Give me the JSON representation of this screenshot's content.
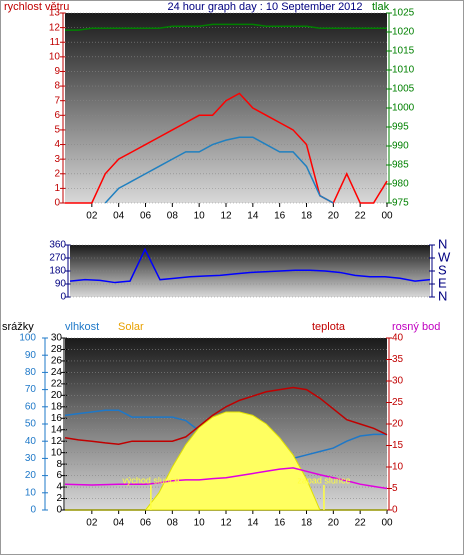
{
  "chart_data": [
    {
      "type": "line",
      "title": "24 hour graph day : 10 September 2012",
      "ylabel": "rychlost větru",
      "y2label": "tlak",
      "x": [
        0,
        1,
        2,
        3,
        4,
        5,
        6,
        7,
        8,
        9,
        10,
        11,
        12,
        13,
        14,
        15,
        16,
        17,
        18,
        19,
        20,
        21,
        22,
        23,
        24
      ],
      "xlim": [
        0,
        24
      ],
      "xticks": [
        {
          "value": 2,
          "label": "02"
        },
        {
          "value": 4,
          "label": "04"
        },
        {
          "value": 6,
          "label": "06"
        },
        {
          "value": 8,
          "label": "08"
        },
        10,
        12,
        14,
        16,
        18,
        20,
        22,
        {
          "value": 24,
          "label": "00"
        }
      ],
      "ylim": [
        0,
        13
      ],
      "yticks": [
        0,
        1,
        2,
        3,
        4,
        5,
        6,
        7,
        8,
        9,
        10,
        11,
        12,
        13
      ],
      "ycolor": "#c00000",
      "y2lim": [
        975,
        1025
      ],
      "y2ticks": [
        975,
        980,
        985,
        990,
        995,
        1000,
        1005,
        1010,
        1015,
        1020,
        1025
      ],
      "y2color": "#008000",
      "grid": true,
      "series": [
        {
          "color": "#ff0000",
          "values": [
            0,
            0,
            0,
            2,
            3,
            3.5,
            4,
            4.5,
            5,
            5.5,
            6,
            6,
            7,
            7.5,
            6.5,
            6,
            5.5,
            5,
            4,
            0.5,
            0,
            2,
            0,
            0,
            1.5
          ]
        },
        {
          "color": "#2080c0",
          "values": [
            null,
            null,
            null,
            0,
            1,
            1.5,
            2,
            2.5,
            3,
            3.5,
            3.5,
            4,
            4.3,
            4.5,
            4.5,
            4,
            3.5,
            3.5,
            2.5,
            0.5,
            0,
            null,
            null,
            null,
            null
          ]
        },
        {
          "color": "#008000",
          "axis": "y2",
          "values": [
            1020.5,
            1020.5,
            1021,
            1021,
            1021,
            1021,
            1021,
            1021,
            1021.5,
            1021.5,
            1021.5,
            1022,
            1022,
            1022,
            1022,
            1021.5,
            1021.5,
            1021.5,
            1021.5,
            1021,
            1021,
            1021,
            1021,
            1021,
            1021
          ]
        }
      ]
    },
    {
      "type": "line",
      "x": [
        0,
        1,
        2,
        3,
        4,
        5,
        6,
        7,
        8,
        9,
        10,
        11,
        12,
        13,
        14,
        15,
        16,
        17,
        18,
        19,
        20,
        21,
        22,
        23,
        24
      ],
      "xlim": [
        0,
        24
      ],
      "ylim": [
        0,
        360
      ],
      "yticks": [
        0,
        90,
        180,
        270,
        360
      ],
      "ycolor": "#000080",
      "y2lim": [
        0,
        360
      ],
      "y2ticks": [
        {
          "value": 0,
          "label": "N"
        },
        {
          "value": 90,
          "label": "E"
        },
        {
          "value": 180,
          "label": "S"
        },
        {
          "value": 270,
          "label": "W"
        },
        {
          "value": 360,
          "label": "N"
        }
      ],
      "y2color": "#000080",
      "grid": true,
      "series": [
        {
          "color": "#0000ff",
          "values": [
            110,
            120,
            115,
            100,
            110,
            330,
            120,
            130,
            140,
            145,
            150,
            160,
            170,
            175,
            180,
            185,
            185,
            180,
            170,
            150,
            140,
            140,
            130,
            110,
            120
          ]
        }
      ]
    },
    {
      "type": "line",
      "x": [
        0,
        1,
        2,
        3,
        4,
        5,
        6,
        7,
        8,
        9,
        10,
        11,
        12,
        13,
        14,
        15,
        16,
        17,
        18,
        19,
        20,
        21,
        22,
        23,
        24
      ],
      "xlim": [
        0,
        24
      ],
      "xticks": [
        {
          "value": 2,
          "label": "02"
        },
        {
          "value": 4,
          "label": "04"
        },
        {
          "value": 6,
          "label": "06"
        },
        {
          "value": 8,
          "label": "08"
        },
        10,
        12,
        14,
        16,
        18,
        20,
        22,
        {
          "value": 24,
          "label": "00"
        }
      ],
      "ylim": [
        0,
        100
      ],
      "yticks": [
        0,
        10,
        20,
        30,
        40,
        50,
        60,
        70,
        80,
        90,
        100
      ],
      "ycolor": "#1e78c8",
      "y3lim": [
        0,
        30
      ],
      "y3ticks": [
        0,
        2,
        4,
        6,
        8,
        10,
        12,
        14,
        16,
        18,
        20,
        22,
        24,
        26,
        28,
        30
      ],
      "y3color": "#000000",
      "y2lim": [
        0,
        40
      ],
      "y2ticks": [
        0,
        5,
        10,
        15,
        20,
        25,
        30,
        35,
        40
      ],
      "y2color": "#c00000",
      "grid": true,
      "series": [
        {
          "name": "srážky",
          "color": "#000000",
          "legend_color": "#000000",
          "axis": "y3",
          "values": [
            0,
            0,
            0,
            0,
            0,
            0,
            0,
            0,
            0,
            0,
            0,
            0,
            0,
            0,
            0,
            0,
            0,
            0,
            0,
            0,
            0,
            0,
            0,
            0,
            0
          ]
        },
        {
          "name": "vlhkost",
          "color": "#1e78c8",
          "legend_color": "#1e78c8",
          "values": [
            55,
            56,
            57,
            58,
            58,
            54,
            54,
            54,
            54,
            52,
            46,
            40,
            35,
            32,
            30,
            30,
            30,
            30,
            32,
            34,
            36,
            40,
            43,
            44,
            44
          ]
        },
        {
          "name": "Solar",
          "color": "#ffff60",
          "legend_color": "#e8a000",
          "area": true,
          "values": [
            0,
            0,
            0,
            0,
            0,
            0,
            0,
            10,
            25,
            38,
            48,
            54,
            57,
            57,
            55,
            50,
            42,
            32,
            18,
            0,
            0,
            0,
            0,
            0,
            0
          ]
        },
        {
          "name": "teplota",
          "color": "#c00000",
          "legend_color": "#c00000",
          "axis": "y2",
          "values": [
            16.8,
            16.3,
            16,
            15.6,
            15.3,
            16,
            16,
            16,
            16,
            17,
            19.5,
            22,
            24,
            25.5,
            26.5,
            27.5,
            28,
            28.5,
            28,
            26,
            23.5,
            21,
            20,
            19,
            17.5
          ]
        },
        {
          "name": "rosný bod",
          "color": "#e000e0",
          "legend_color": "#c000c0",
          "axis": "y2",
          "values": [
            6,
            5.9,
            5.8,
            5.9,
            6,
            6,
            6,
            6.3,
            6.8,
            7,
            7,
            7.3,
            7.5,
            8,
            8.5,
            9,
            9.5,
            9.8,
            9,
            8.2,
            7.5,
            6.8,
            6,
            5.5,
            5
          ]
        }
      ],
      "annotations": [
        {
          "text": "východ slunce",
          "x": 6.4
        },
        {
          "text": "západ slunce",
          "x": 19.3
        }
      ]
    }
  ]
}
